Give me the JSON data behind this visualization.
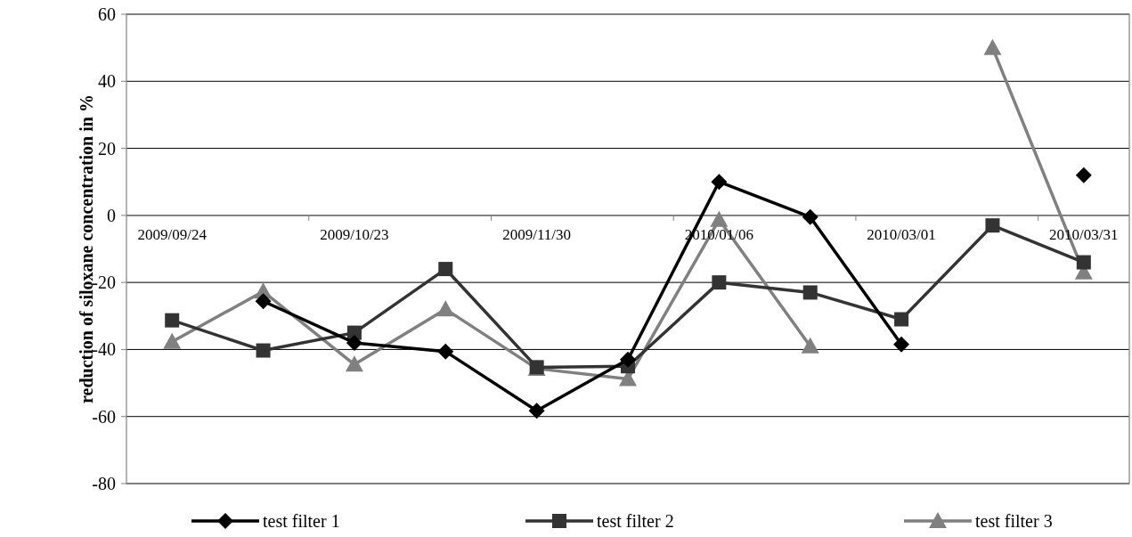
{
  "chart_data": {
    "type": "line",
    "ylabel": "reduction of siloxane concentration in %",
    "categories": [
      "2009/09/24",
      null,
      "2009/10/23",
      null,
      "2009/11/30",
      null,
      "2010/01/06",
      null,
      "2010/03/01",
      null,
      "2010/03/31"
    ],
    "series": [
      {
        "name": "test filter 1",
        "color": "#000000",
        "marker": "diamond",
        "values": [
          null,
          -25.6,
          -38,
          -40.6,
          -58.3,
          -43,
          10,
          -0.5,
          -38.5,
          null,
          12
        ]
      },
      {
        "name": "test filter 2",
        "color": "#333333",
        "marker": "square",
        "values": [
          -31.3,
          -40.3,
          -35,
          -16,
          -45.3,
          -45,
          -20,
          -23,
          -31,
          -3,
          -14
        ]
      },
      {
        "name": "test filter 3",
        "color": "#808080",
        "marker": "triangle",
        "values": [
          -37.7,
          -22.7,
          -44.5,
          -28,
          -45.7,
          -48.8,
          -1.3,
          -39,
          null,
          50,
          -17
        ]
      }
    ],
    "ylim": [
      -80,
      60
    ],
    "yticks": [
      -80,
      -60,
      -40,
      -20,
      0,
      20,
      40,
      60
    ],
    "grid": "y",
    "legend": "bottom",
    "line_style": "solid"
  }
}
